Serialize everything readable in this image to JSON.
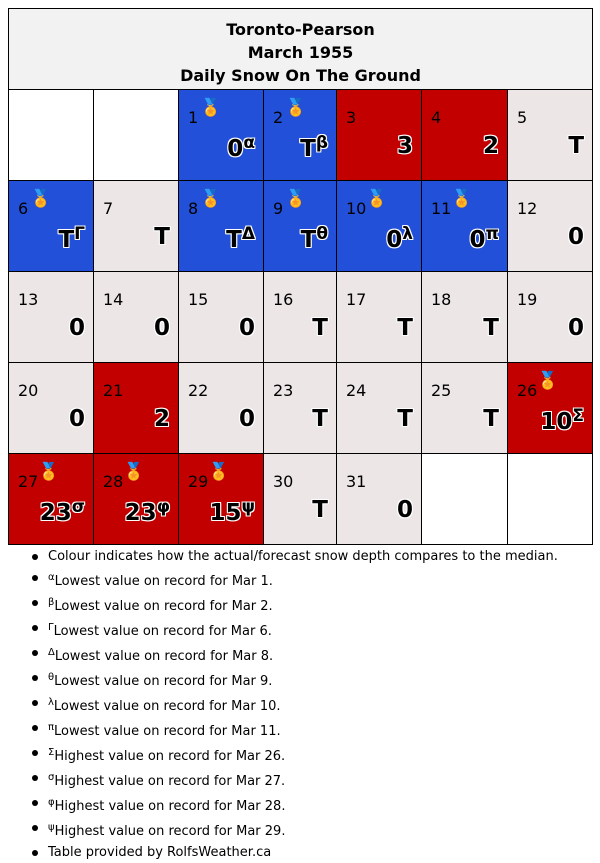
{
  "header": {
    "station": "Toronto-Pearson",
    "month": "March 1955",
    "subject": "Daily Snow On The Ground"
  },
  "colors": {
    "low_record": "#2250d8",
    "high": "#c30000",
    "normal": "#ece6e7",
    "blank": "#ffffff"
  },
  "days": [
    {
      "day": "1",
      "value": "0",
      "sup": "α",
      "color": "blue",
      "medal": true
    },
    {
      "day": "2",
      "value": "T",
      "sup": "β",
      "color": "blue",
      "medal": true
    },
    {
      "day": "3",
      "value": "3",
      "sup": "",
      "color": "red",
      "medal": false
    },
    {
      "day": "4",
      "value": "2",
      "sup": "",
      "color": "red",
      "medal": false
    },
    {
      "day": "5",
      "value": "T",
      "sup": "",
      "color": "gray",
      "medal": false
    },
    {
      "day": "6",
      "value": "T",
      "sup": "Γ",
      "color": "blue",
      "medal": true
    },
    {
      "day": "7",
      "value": "T",
      "sup": "",
      "color": "gray",
      "medal": false
    },
    {
      "day": "8",
      "value": "T",
      "sup": "Δ",
      "color": "blue",
      "medal": true
    },
    {
      "day": "9",
      "value": "T",
      "sup": "θ",
      "color": "blue",
      "medal": true
    },
    {
      "day": "10",
      "value": "0",
      "sup": "λ",
      "color": "blue",
      "medal": true
    },
    {
      "day": "11",
      "value": "0",
      "sup": "π",
      "color": "blue",
      "medal": true
    },
    {
      "day": "12",
      "value": "0",
      "sup": "",
      "color": "gray",
      "medal": false
    },
    {
      "day": "13",
      "value": "0",
      "sup": "",
      "color": "gray",
      "medal": false
    },
    {
      "day": "14",
      "value": "0",
      "sup": "",
      "color": "gray",
      "medal": false
    },
    {
      "day": "15",
      "value": "0",
      "sup": "",
      "color": "gray",
      "medal": false
    },
    {
      "day": "16",
      "value": "T",
      "sup": "",
      "color": "gray",
      "medal": false
    },
    {
      "day": "17",
      "value": "T",
      "sup": "",
      "color": "gray",
      "medal": false
    },
    {
      "day": "18",
      "value": "T",
      "sup": "",
      "color": "gray",
      "medal": false
    },
    {
      "day": "19",
      "value": "0",
      "sup": "",
      "color": "gray",
      "medal": false
    },
    {
      "day": "20",
      "value": "0",
      "sup": "",
      "color": "gray",
      "medal": false
    },
    {
      "day": "21",
      "value": "2",
      "sup": "",
      "color": "red",
      "medal": false
    },
    {
      "day": "22",
      "value": "0",
      "sup": "",
      "color": "gray",
      "medal": false
    },
    {
      "day": "23",
      "value": "T",
      "sup": "",
      "color": "gray",
      "medal": false
    },
    {
      "day": "24",
      "value": "T",
      "sup": "",
      "color": "gray",
      "medal": false
    },
    {
      "day": "25",
      "value": "T",
      "sup": "",
      "color": "gray",
      "medal": false
    },
    {
      "day": "26",
      "value": "10",
      "sup": "Σ",
      "color": "red",
      "medal": true
    },
    {
      "day": "27",
      "value": "23",
      "sup": "σ",
      "color": "red",
      "medal": true
    },
    {
      "day": "28",
      "value": "23",
      "sup": "φ",
      "color": "red",
      "medal": true
    },
    {
      "day": "29",
      "value": "15",
      "sup": "ψ",
      "color": "red",
      "medal": true
    },
    {
      "day": "30",
      "value": "T",
      "sup": "",
      "color": "gray",
      "medal": false
    },
    {
      "day": "31",
      "value": "0",
      "sup": "",
      "color": "gray",
      "medal": false
    }
  ],
  "leading_blanks": 2,
  "trailing_blanks": 2,
  "notes": [
    {
      "sup": "",
      "text": "Colour indicates how the actual/forecast snow depth compares to the median."
    },
    {
      "sup": "α",
      "text": "Lowest value on record for Mar 1."
    },
    {
      "sup": "β",
      "text": "Lowest value on record for Mar 2."
    },
    {
      "sup": "Γ",
      "text": "Lowest value on record for Mar 6."
    },
    {
      "sup": "Δ",
      "text": "Lowest value on record for Mar 8."
    },
    {
      "sup": "θ",
      "text": "Lowest value on record for Mar 9."
    },
    {
      "sup": "λ",
      "text": "Lowest value on record for Mar 10."
    },
    {
      "sup": "π",
      "text": "Lowest value on record for Mar 11."
    },
    {
      "sup": "Σ",
      "text": "Highest value on record for Mar 26."
    },
    {
      "sup": "σ",
      "text": "Highest value on record for Mar 27."
    },
    {
      "sup": "φ",
      "text": "Highest value on record for Mar 28."
    },
    {
      "sup": "ψ",
      "text": "Highest value on record for Mar 29."
    },
    {
      "sup": "",
      "text": "Table provided by RolfsWeather.ca"
    }
  ]
}
